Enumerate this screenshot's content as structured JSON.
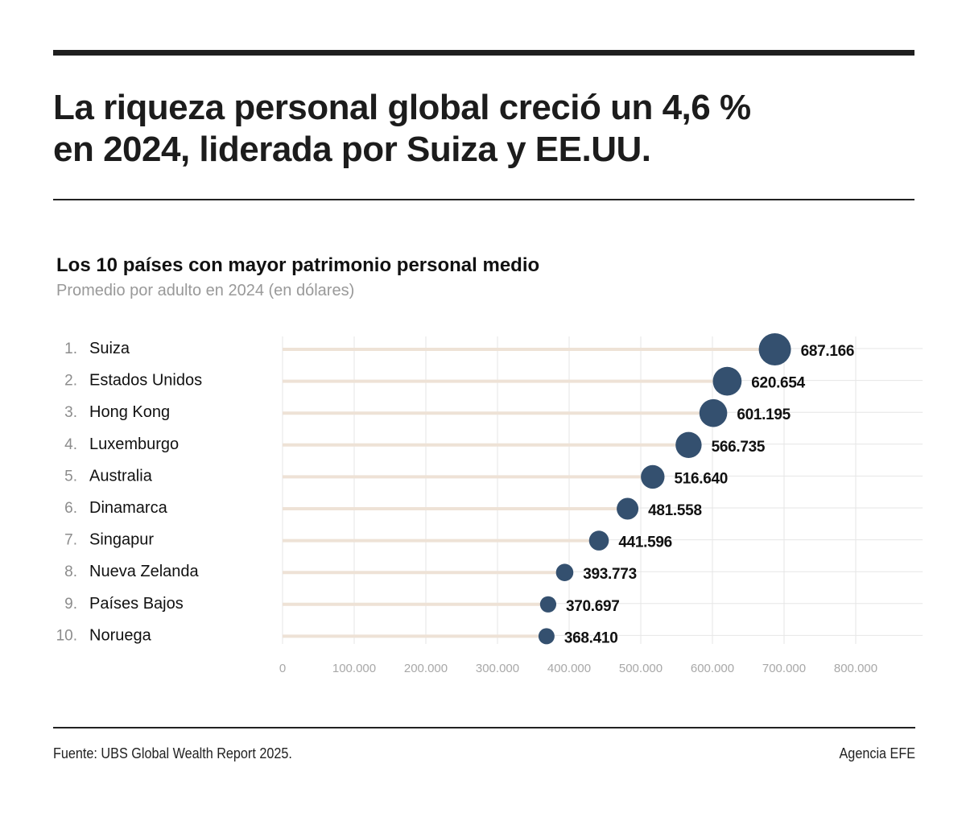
{
  "headline": {
    "line1": "La riqueza personal global creció un 4,6 %",
    "line2": "en 2024, liderada por Suiza y EE.UU."
  },
  "chart_data": {
    "type": "lollipop",
    "title": "Los 10 países con mayor patrimonio personal medio",
    "subtitle": "Promedio por adulto en 2024 (en dólares)",
    "ranks": [
      "1.",
      "2.",
      "3.",
      "4.",
      "5.",
      "6.",
      "7.",
      "8.",
      "9.",
      "10."
    ],
    "categories": [
      "Suiza",
      "Estados Unidos",
      "Hong Kong",
      "Luxemburgo",
      "Australia",
      "Dinamarca",
      "Singapur",
      "Nueva Zelanda",
      "Países Bajos",
      "Noruega"
    ],
    "values": [
      687166,
      620654,
      601195,
      566735,
      516640,
      481558,
      441596,
      393773,
      370697,
      368410
    ],
    "value_labels": [
      "687.166",
      "620.654",
      "601.195",
      "566.735",
      "516.640",
      "481.558",
      "441.596",
      "393.773",
      "370.697",
      "368.410"
    ],
    "xlim": [
      0,
      880000
    ],
    "ticks": [
      0,
      100000,
      200000,
      300000,
      400000,
      500000,
      600000,
      700000,
      800000
    ],
    "tick_labels": [
      "0",
      "100.000",
      "200.000",
      "300.000",
      "400.000",
      "500.000",
      "600.000",
      "700.000",
      "800.000"
    ],
    "xlabel": "",
    "ylabel": "",
    "grid": true
  },
  "footer": {
    "source": "Fuente: UBS Global Wealth Report 2025.",
    "agency": "Agencia EFE"
  },
  "colors": {
    "dot": "#34506f",
    "stem": "#eee2d6",
    "grid": "#e6e6e6",
    "rank": "#8c8c8c",
    "tick": "#a8a8a8",
    "text": "#111111"
  }
}
